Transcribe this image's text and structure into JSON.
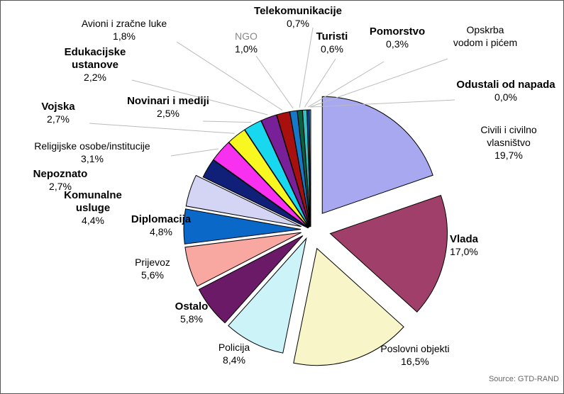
{
  "chart_data": {
    "type": "pie",
    "exploded": true,
    "slices": [
      {
        "label": "Civili i civilno vlasništvo",
        "label_lines": [
          "Civili i civilno",
          "vlasništvo"
        ],
        "value": 19.7,
        "display": "19,7%",
        "color": "#a8a8f0",
        "bold": false
      },
      {
        "label": "Vlada",
        "label_lines": [
          "Vlada"
        ],
        "value": 17.0,
        "display": "17,0%",
        "color": "#a0406a",
        "bold": true
      },
      {
        "label": "Poslovni objekti",
        "label_lines": [
          "Poslovni objekti"
        ],
        "value": 16.5,
        "display": "16,5%",
        "color": "#f8f5c8",
        "bold": false
      },
      {
        "label": "Policija",
        "label_lines": [
          "Policija"
        ],
        "value": 8.4,
        "display": "8,4%",
        "color": "#ccf4f8",
        "bold": false
      },
      {
        "label": "Ostalo",
        "label_lines": [
          "Ostalo"
        ],
        "value": 5.8,
        "display": "5,8%",
        "color": "#6a1a66",
        "bold": true
      },
      {
        "label": "Prijevoz",
        "label_lines": [
          "Prijevoz"
        ],
        "value": 5.6,
        "display": "5,6%",
        "color": "#f8a8a0",
        "bold": false
      },
      {
        "label": "Diplomacija",
        "label_lines": [
          "Diplomacija"
        ],
        "value": 4.8,
        "display": "4,8%",
        "color": "#0a68c8",
        "bold": true
      },
      {
        "label": "Komunalne usluge",
        "label_lines": [
          "Komunalne",
          "usluge"
        ],
        "value": 4.4,
        "display": "4,4%",
        "color": "#d4d4f4",
        "bold": true
      },
      {
        "label": "Nepoznato",
        "label_lines": [
          "Nepoznato"
        ],
        "value": 2.7,
        "display": "2,7%",
        "color": "#102078",
        "bold": true
      },
      {
        "label": "Religijske osobe/institucije",
        "label_lines": [
          "Religijske osobe/institucije"
        ],
        "value": 3.1,
        "display": "3,1%",
        "color": "#f830f0",
        "bold": false
      },
      {
        "label": "Vojska",
        "label_lines": [
          "Vojska"
        ],
        "value": 2.7,
        "display": "2,7%",
        "color": "#f8f820",
        "bold": true
      },
      {
        "label": "Novinari i mediji",
        "label_lines": [
          "Novinari i mediji"
        ],
        "value": 2.5,
        "display": "2,5%",
        "color": "#18d8f0",
        "bold": true
      },
      {
        "label": "Edukacijske ustanove",
        "label_lines": [
          "Edukacijske",
          "ustanove"
        ],
        "value": 2.2,
        "display": "2,2%",
        "color": "#782098",
        "bold": true
      },
      {
        "label": "Avioni i zračne luke",
        "label_lines": [
          "Avioni i zračne luke"
        ],
        "value": 1.8,
        "display": "1,8%",
        "color": "#a81010",
        "bold": false
      },
      {
        "label": "NGO",
        "label_lines": [
          "NGO"
        ],
        "value": 1.0,
        "display": "1,0%",
        "color": "#1878c8",
        "bold": false
      },
      {
        "label": "Telekomunikacije",
        "label_lines": [
          "Telekomunikacije"
        ],
        "value": 0.7,
        "display": "0,7%",
        "color": "#0a6040",
        "bold": true
      },
      {
        "label": "Turisti",
        "label_lines": [
          "Turisti"
        ],
        "value": 0.6,
        "display": "0,6%",
        "color": "#38c0c0",
        "bold": true
      },
      {
        "label": "Pomorstvo",
        "label_lines": [
          "Pomorstvo"
        ],
        "value": 0.3,
        "display": "0,3%",
        "color": "#1848a0",
        "bold": true
      },
      {
        "label": "Opskrba vodom i pićem",
        "label_lines": [
          "Opskrba",
          "vodom i pićem"
        ],
        "value": 0.2,
        "display": "",
        "color": "#60b0e0",
        "bold": false
      },
      {
        "label": "Odustali od napada",
        "label_lines": [
          "Odustali od napada"
        ],
        "value": 0.0,
        "display": "0,0%",
        "color": "#202020",
        "bold": true
      }
    ]
  },
  "source": "Source: GTD-RAND"
}
